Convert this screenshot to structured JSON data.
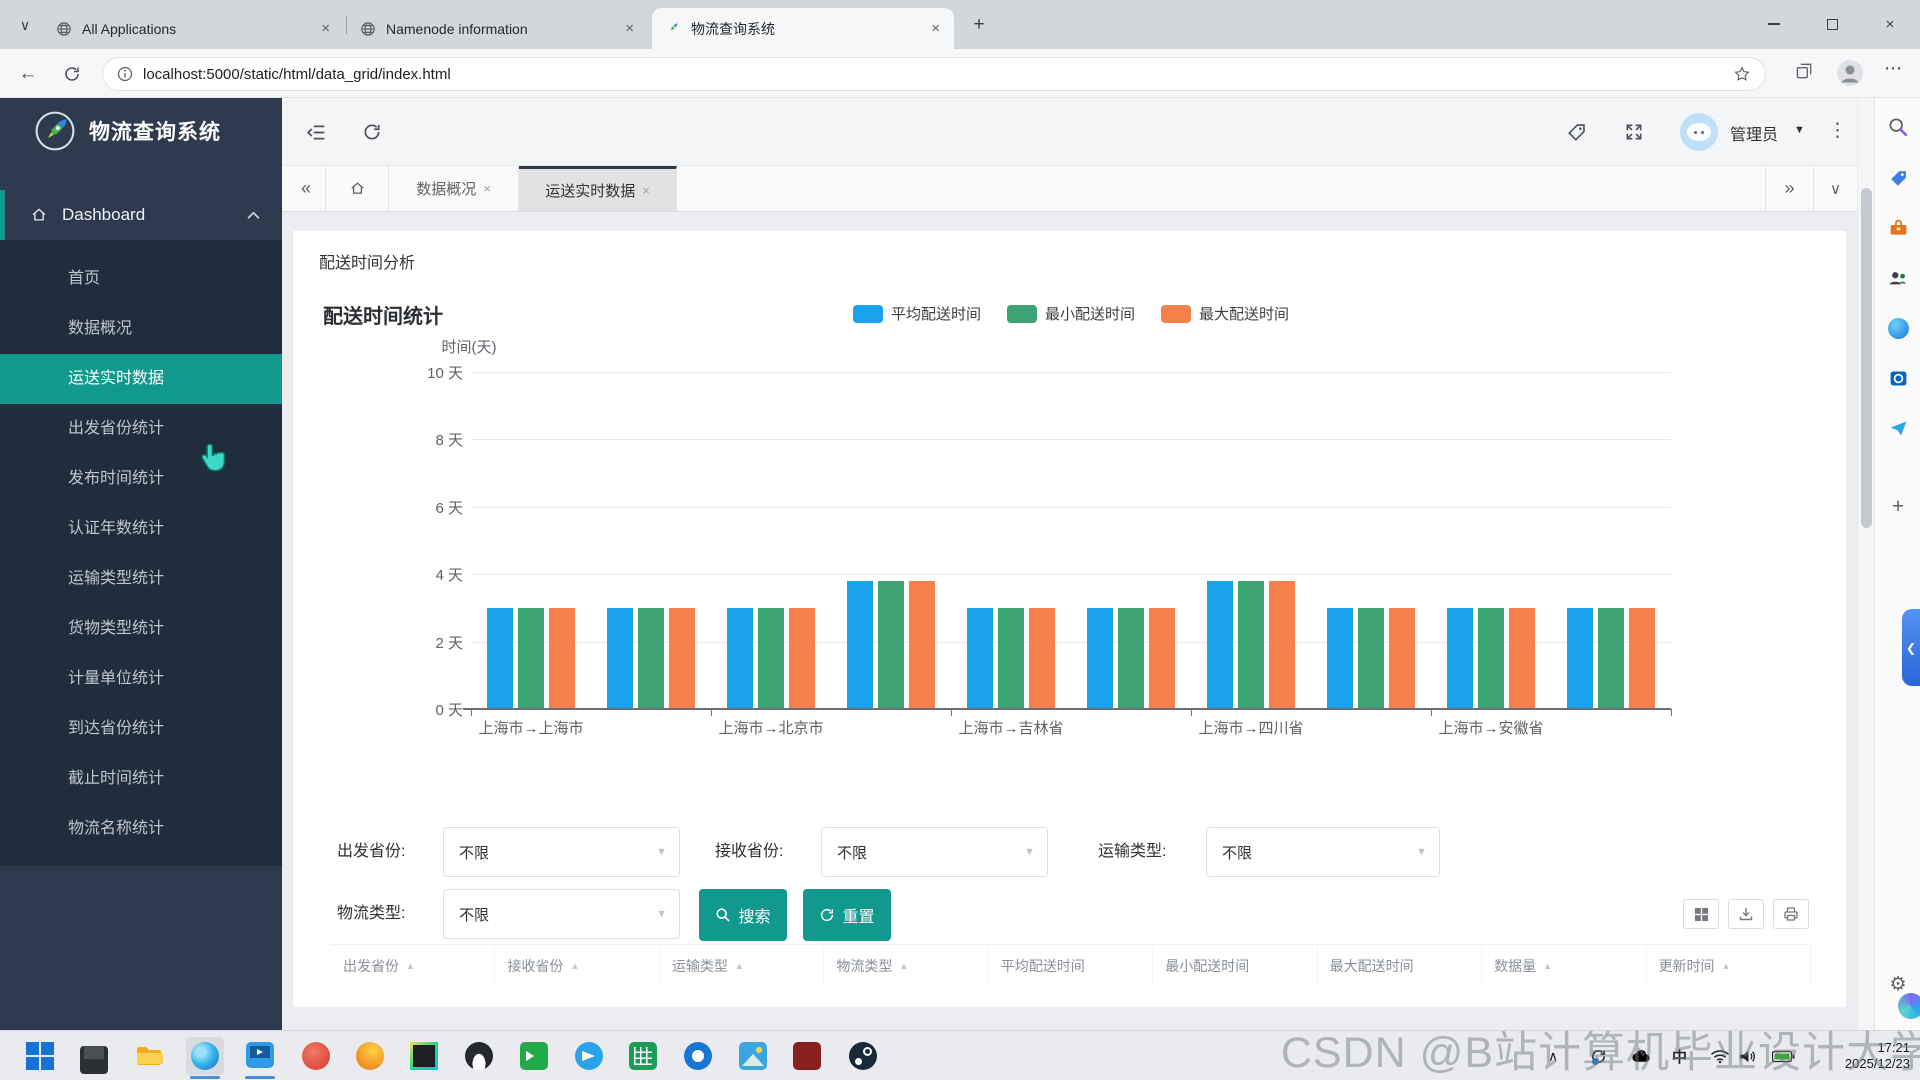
{
  "colors": {
    "accent": "#12998e",
    "sidebar_bg": "#2e3b4e",
    "submenu_bg": "#1f2d3d",
    "chart_blue": "#1aa3ec",
    "chart_green": "#3ca372",
    "chart_orange": "#f5824c"
  },
  "glyphs": {
    "chevrons_left": "«",
    "chevrons_right": "»",
    "chevron_down": "∨",
    "chevron_small_down": "∨",
    "more_vertical": "⋮",
    "more_horizontal": "⋯",
    "plus": "+",
    "caret_down": "▼",
    "sort_caret": "▲",
    "tab_close": "×",
    "back_arrow": "←",
    "close_window": "×",
    "hidden_icons": "∧",
    "gear": "⚙"
  },
  "browser": {
    "tabs": [
      {
        "title": "All Applications",
        "active": false
      },
      {
        "title": "Namenode information",
        "active": false
      },
      {
        "title": "物流查询系统",
        "active": true
      }
    ],
    "url": "localhost:5000/static/html/data_grid/index.html"
  },
  "sidebar": {
    "app_title": "物流查询系统",
    "menu_root": "Dashboard",
    "items": [
      "首页",
      "数据概况",
      "运送实时数据",
      "出发省份统计",
      "发布时间统计",
      "认证年数统计",
      "运输类型统计",
      "货物类型统计",
      "计量单位统计",
      "到达省份统计",
      "截止时间统计",
      "物流名称统计"
    ],
    "active_item": "运送实时数据"
  },
  "header": {
    "user": "管理员"
  },
  "nav_tabs": {
    "tabs": [
      {
        "label": "数据概况",
        "active": false
      },
      {
        "label": "运送实时数据",
        "active": true
      }
    ]
  },
  "panel": {
    "title": "配送时间分析"
  },
  "chart_data": {
    "type": "bar",
    "title": "配送时间统计",
    "ylabel": "时间(天)",
    "ylim": [
      0,
      10
    ],
    "grid": true,
    "legend_position": "top",
    "yticks": [
      {
        "value": 0,
        "label": "0 天"
      },
      {
        "value": 2,
        "label": "2 天"
      },
      {
        "value": 4,
        "label": "4 天"
      },
      {
        "value": 6,
        "label": "6 天"
      },
      {
        "value": 8,
        "label": "8 天"
      },
      {
        "value": 10,
        "label": "10 天"
      }
    ],
    "categories": [
      "上海市→上海市",
      "",
      "上海市→北京市",
      "",
      "上海市→吉林省",
      "",
      "上海市→四川省",
      "",
      "上海市→安徽省",
      ""
    ],
    "series": [
      {
        "name": "平均配送时间",
        "color": "#1aa3ec",
        "values": [
          3,
          3,
          3,
          3.8,
          3,
          3,
          3.8,
          3,
          3,
          3
        ]
      },
      {
        "name": "最小配送时间",
        "color": "#3ca372",
        "values": [
          3,
          3,
          3,
          3.8,
          3,
          3,
          3.8,
          3,
          3,
          3
        ]
      },
      {
        "name": "最大配送时间",
        "color": "#f5824c",
        "values": [
          3,
          3,
          3,
          3.8,
          3,
          3,
          3.8,
          3,
          3,
          3
        ]
      }
    ]
  },
  "filters": {
    "fields": [
      {
        "label": "出发省份:",
        "value": "不限"
      },
      {
        "label": "接收省份:",
        "value": "不限"
      },
      {
        "label": "运输类型:",
        "value": "不限"
      },
      {
        "label": "物流类型:",
        "value": "不限"
      }
    ],
    "search_label": "搜索",
    "reset_label": "重置"
  },
  "table": {
    "columns": [
      {
        "label": "出发省份",
        "sortable": true
      },
      {
        "label": "接收省份",
        "sortable": true
      },
      {
        "label": "运输类型",
        "sortable": true
      },
      {
        "label": "物流类型",
        "sortable": true
      },
      {
        "label": "平均配送时间",
        "sortable": false
      },
      {
        "label": "最小配送时间",
        "sortable": false
      },
      {
        "label": "最大配送时间",
        "sortable": false
      },
      {
        "label": "数据量",
        "sortable": true
      },
      {
        "label": "更新时间",
        "sortable": true
      }
    ]
  },
  "taskbar": {
    "ime": "中",
    "time": "17:21",
    "date": "2025/12/23"
  },
  "watermark": "CSDN @B站计算机毕业设计大学"
}
